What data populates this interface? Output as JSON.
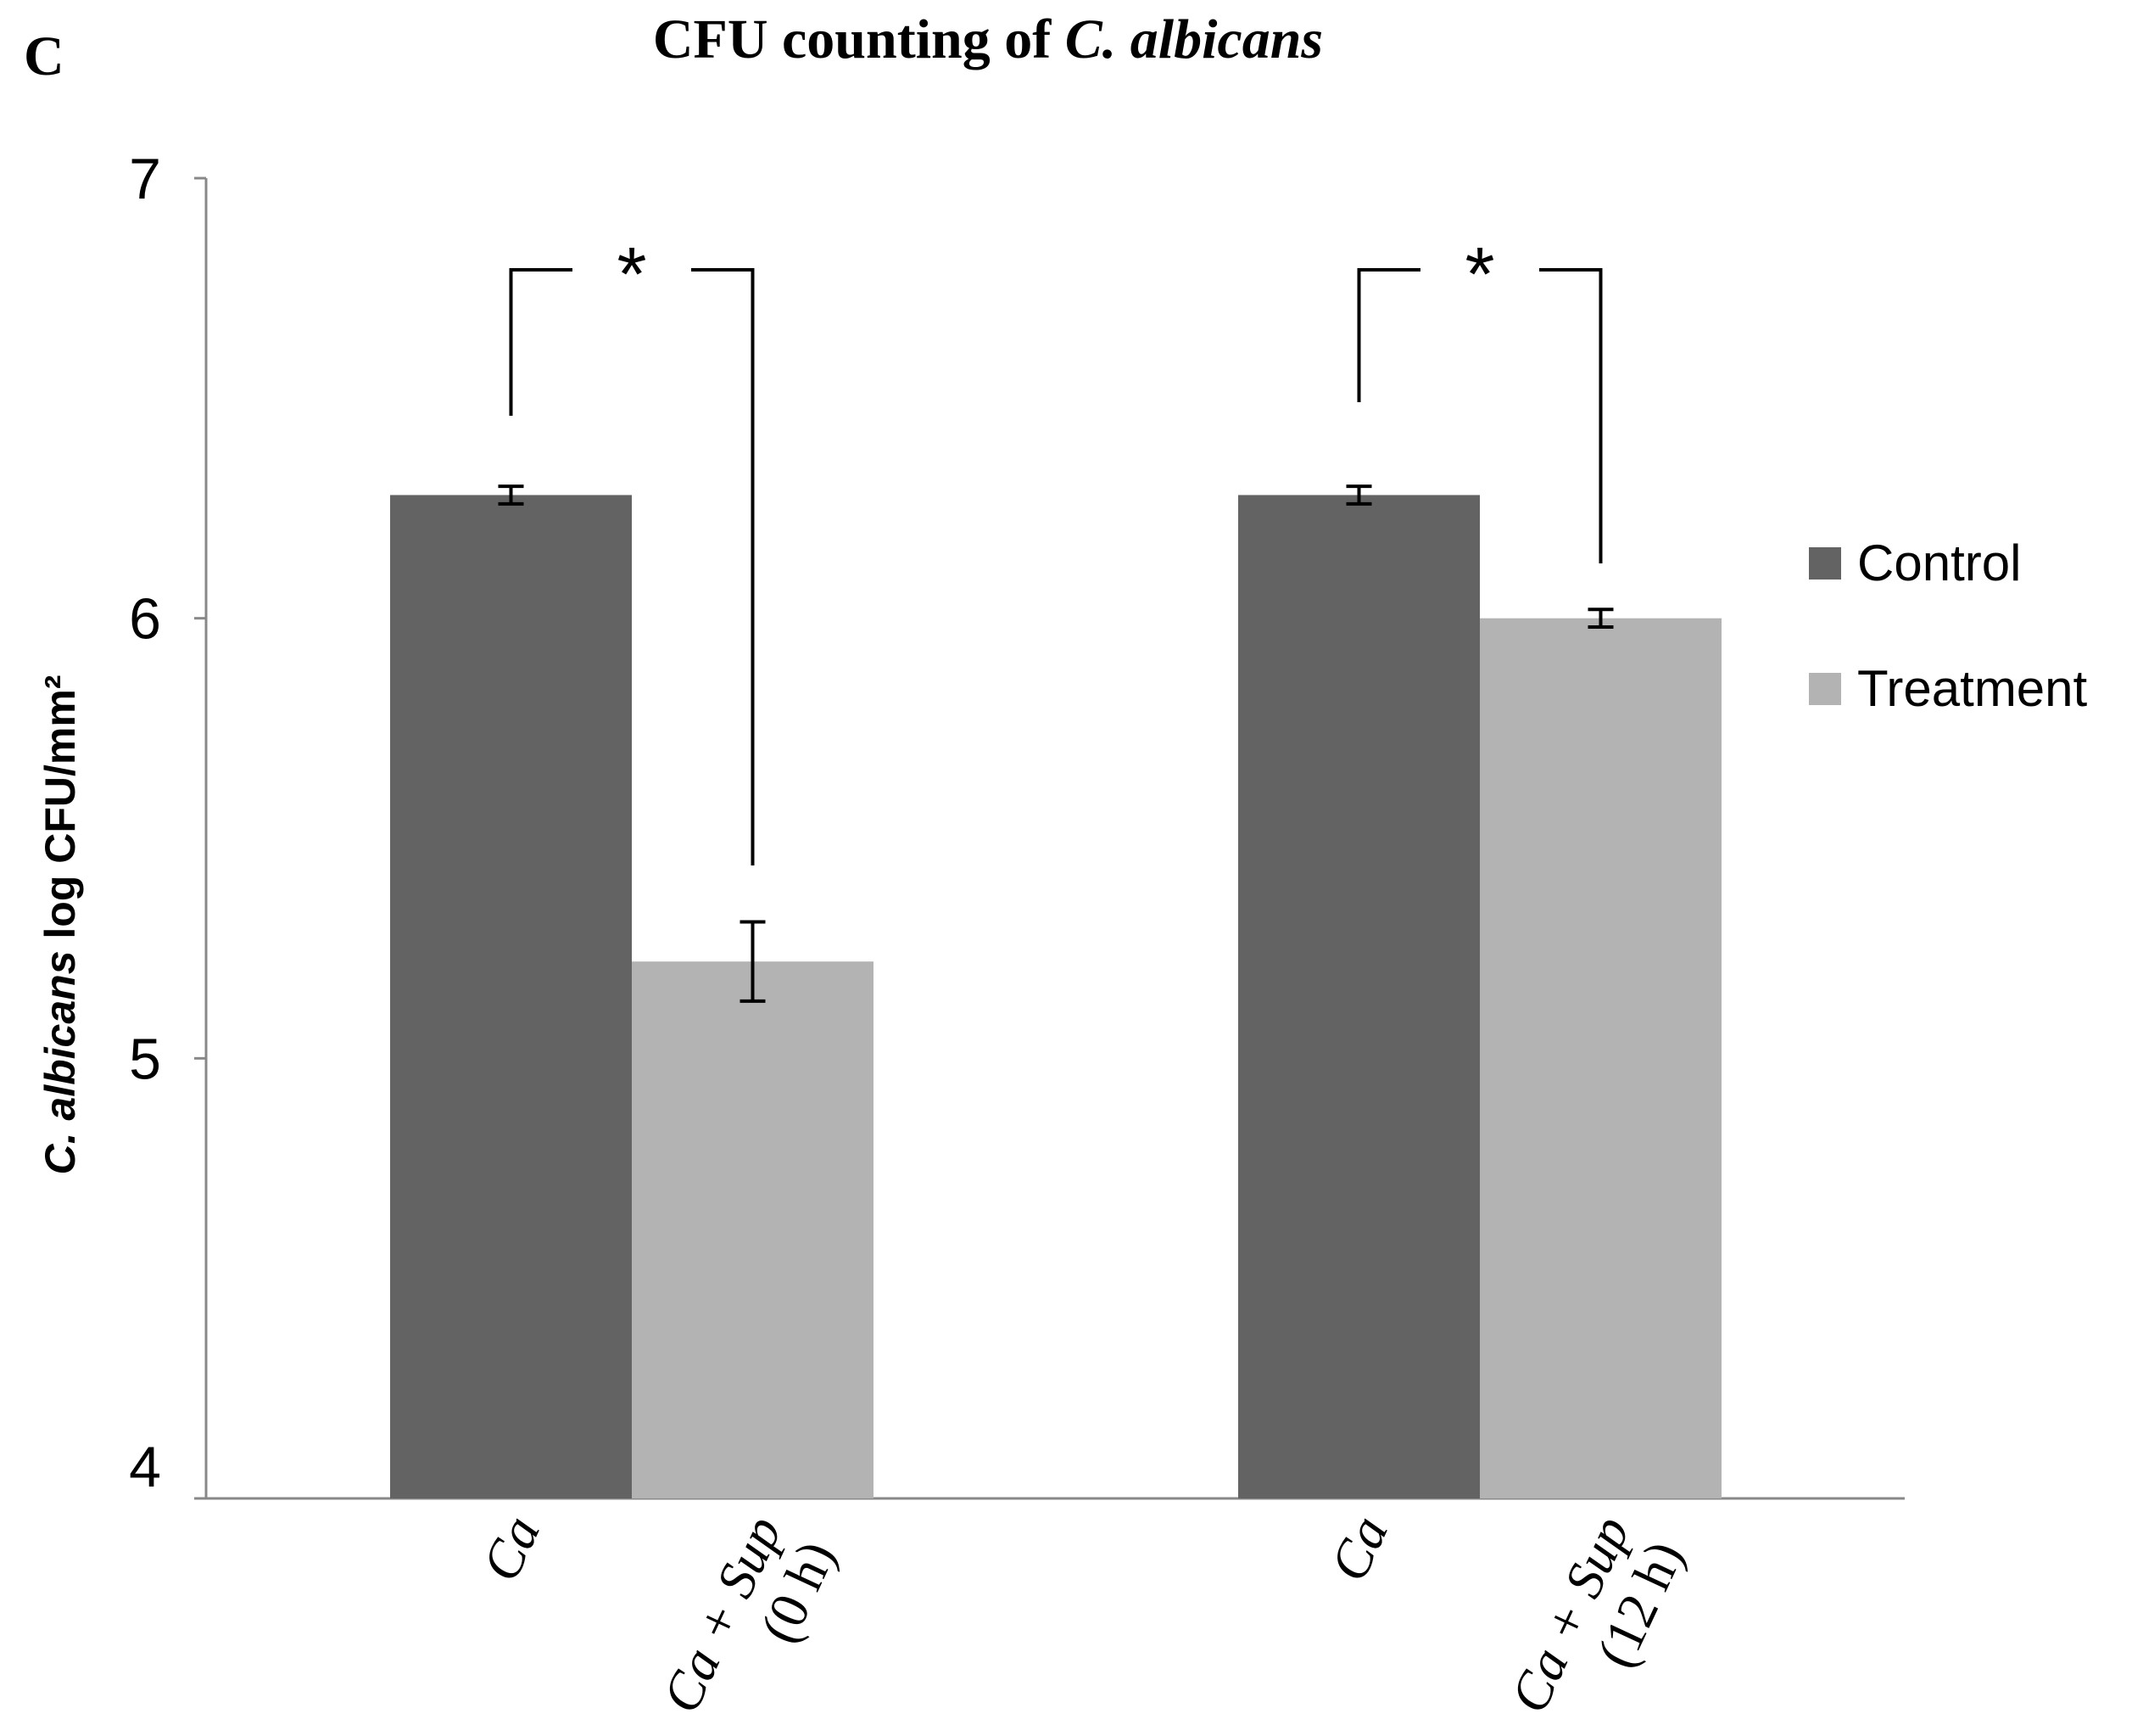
{
  "panel_label": "C",
  "title_main": "CFU counting of ",
  "title_italic": "C. albicans",
  "ylabel_italic": "C. albicans",
  "ylabel_rest": " log CFU/mm²",
  "legend": [
    {
      "label": "Control",
      "color": "#636363"
    },
    {
      "label": "Treatment",
      "color": "#b3b3b3"
    }
  ],
  "chart_data": {
    "type": "bar",
    "title": "CFU counting of C. albicans",
    "ylabel": "C. albicans log CFU/mm²",
    "ylim": [
      4,
      7
    ],
    "yticks": [
      "4",
      "5",
      "6",
      "7"
    ],
    "grid": false,
    "legend_position": "right",
    "groups": [
      {
        "bars": [
          {
            "series": "Control",
            "label": "Ca",
            "value": 6.28,
            "error": 0.02
          },
          {
            "series": "Treatment",
            "label_lines": [
              "Ca + Sup",
              "(0 h)"
            ],
            "value": 5.22,
            "error": 0.09
          }
        ],
        "significance": "*"
      },
      {
        "bars": [
          {
            "series": "Control",
            "label": "Ca",
            "value": 6.28,
            "error": 0.02
          },
          {
            "series": "Treatment",
            "label_lines": [
              "Ca + Sup",
              "(12 h)"
            ],
            "value": 6.0,
            "error": 0.02
          }
        ],
        "significance": "*"
      }
    ]
  }
}
